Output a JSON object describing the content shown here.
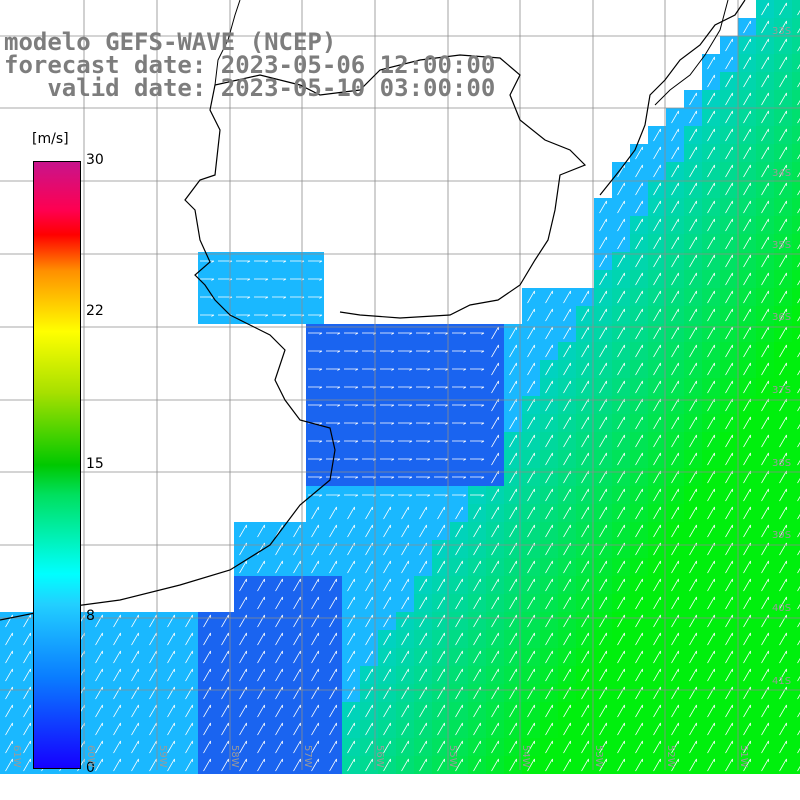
{
  "title": {
    "line1": "modelo GEFS-WAVE (NCEP)",
    "line2": "forecast date: 2023-05-06 12:00:00",
    "line3": "   valid date: 2023-05-10 03:00:00"
  },
  "colorbar": {
    "unit": "[m/s]",
    "min": 0,
    "max": 30,
    "ticks": [
      "30",
      "22",
      "15",
      "8",
      "0"
    ]
  },
  "lat_labels": [
    "33S",
    "34S",
    "35S",
    "36S",
    "37S",
    "38S",
    "39S",
    "40S",
    "41S"
  ],
  "lon_labels": [
    "61W",
    "60W",
    "59W",
    "58W",
    "57W",
    "56W",
    "55W",
    "54W",
    "53W",
    "52W",
    "51W"
  ],
  "colors": {
    "ocean_dark": "#1560ee",
    "ocean_light": "#00e8ff",
    "strong_wind": "#00d800",
    "grid": "#8c8c8c",
    "coast": "#000000",
    "title": "#7d7d7d"
  }
}
